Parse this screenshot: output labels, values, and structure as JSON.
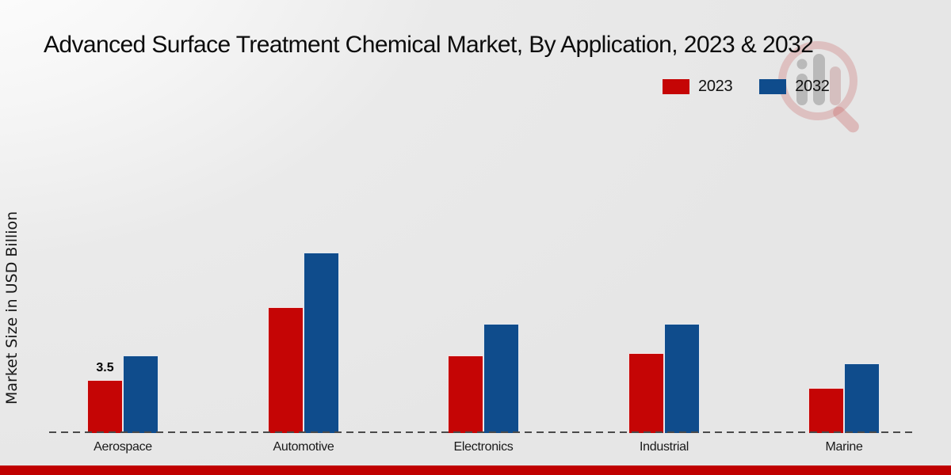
{
  "page": {
    "title": "Advanced Surface Treatment Chemical Market, By Application, 2023 & 2032",
    "ylabel": "Market Size in USD Billion"
  },
  "legend": {
    "items": [
      {
        "label": "2023",
        "color": "#c50505"
      },
      {
        "label": "2032",
        "color": "#0f4c8c"
      }
    ]
  },
  "chart_data": {
    "type": "bar",
    "title": "Advanced Surface Treatment Chemical Market, By Application, 2023 & 2032",
    "xlabel": "",
    "ylabel": "Market Size in USD Billion",
    "categories": [
      "Aerospace",
      "Automotive",
      "Electronics",
      "Industrial",
      "Marine"
    ],
    "series": [
      {
        "name": "2023",
        "color": "#c50505",
        "values": [
          3.5,
          8.3,
          5.1,
          5.3,
          3.0
        ]
      },
      {
        "name": "2032",
        "color": "#0f4c8c",
        "values": [
          5.1,
          11.9,
          7.2,
          7.2,
          4.6
        ]
      }
    ],
    "annotations": [
      {
        "category": "Aerospace",
        "series": "2023",
        "text": "3.5"
      }
    ],
    "ylim": [
      0,
      12.5
    ],
    "grid": false,
    "legend_position": "top-right",
    "baseline_style": "dashed-zero-line"
  },
  "colors": {
    "series_2023": "#c50505",
    "series_2032": "#0f4c8c",
    "footer_stripe": "#c00000",
    "baseline": "#4a4a4a",
    "text": "#111111"
  }
}
